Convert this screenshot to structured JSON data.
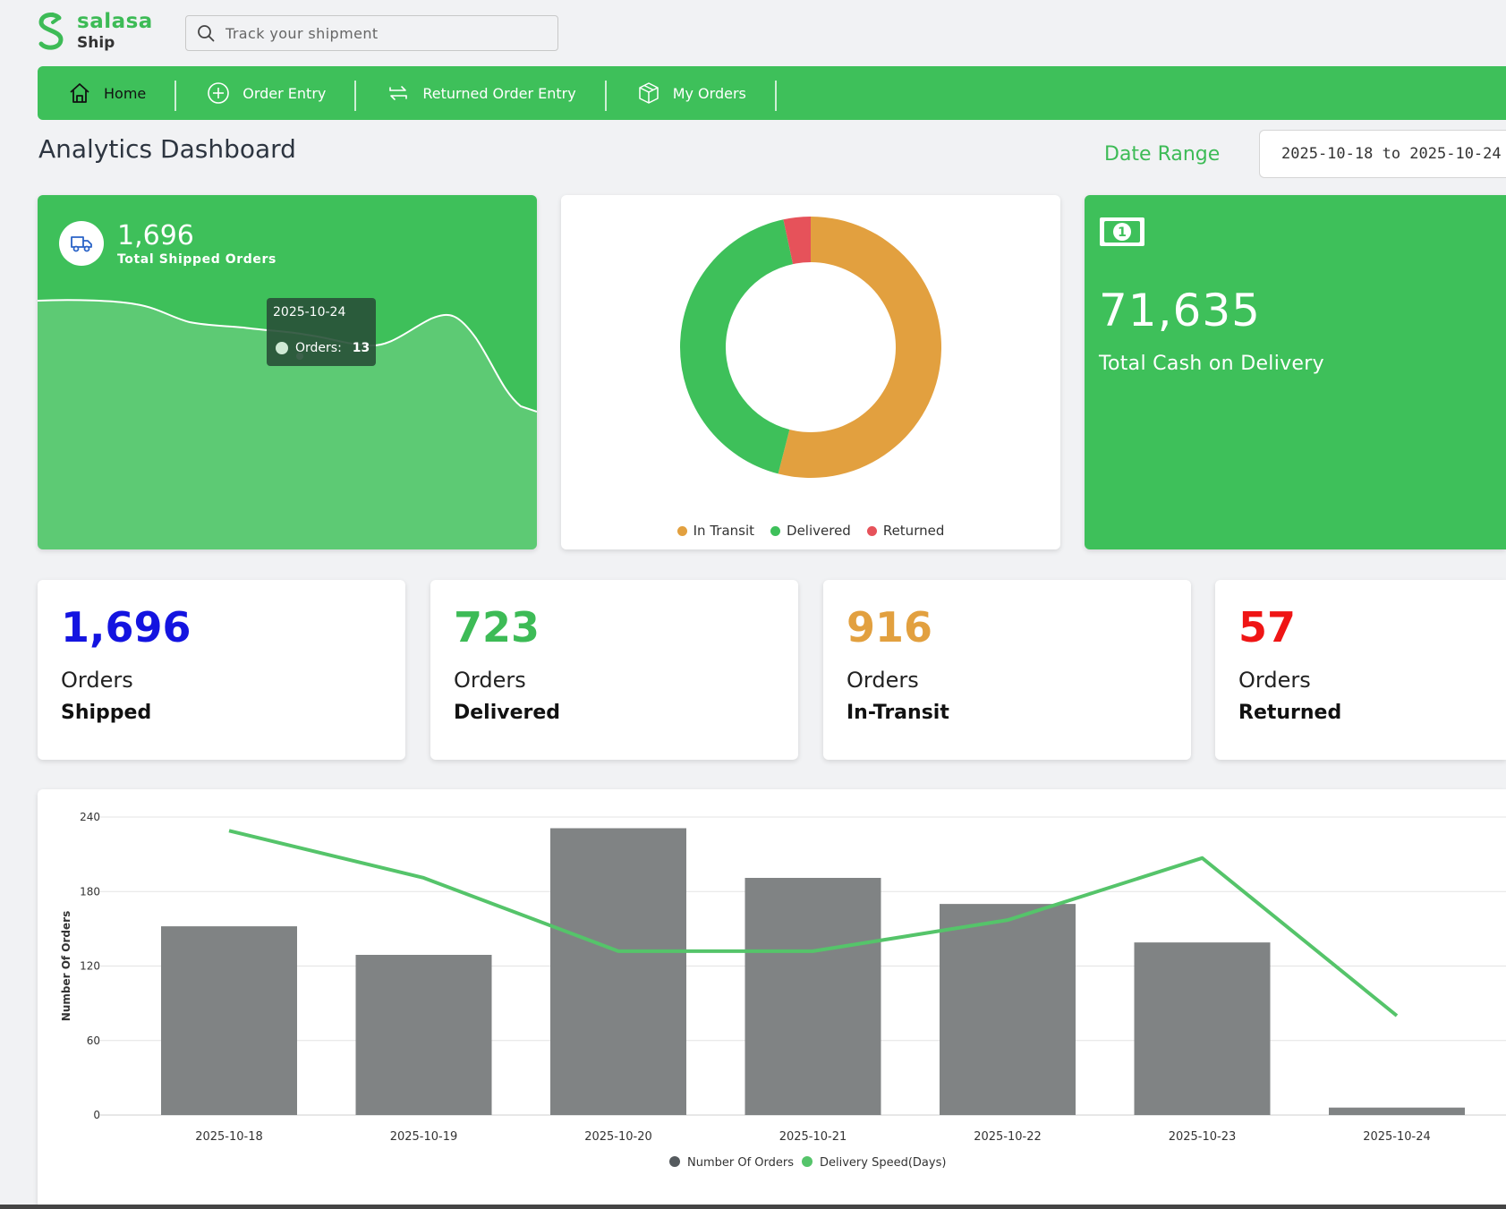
{
  "brand": {
    "name": "salasa",
    "sub": "Ship",
    "color": "#3dbb56"
  },
  "search": {
    "placeholder": "Track your shipment",
    "icon": "search-icon"
  },
  "nav": {
    "items": [
      {
        "label": "Home",
        "icon": "home-icon",
        "active": true
      },
      {
        "label": "Order Entry",
        "icon": "plus-circle-icon"
      },
      {
        "label": "Returned Order Entry",
        "icon": "arrows-swap-icon"
      },
      {
        "label": "My Orders",
        "icon": "box-icon"
      }
    ],
    "color": "#3ec05a"
  },
  "page": {
    "title": "Analytics Dashboard"
  },
  "date_range": {
    "label": "Date Range",
    "value": "2025-10-18 to 2025-10-24"
  },
  "shipped_card": {
    "value": "1,696",
    "label": "Total Shipped Orders",
    "icon": "truck-icon",
    "tooltip": {
      "date": "2025-10-24",
      "series": "Orders:",
      "value": "13"
    }
  },
  "cod_card": {
    "value": "71,635",
    "label": "Total Cash on Delivery",
    "icon": "cash-icon"
  },
  "stats": [
    {
      "value": "1,696",
      "line1": "Orders",
      "line2": "Shipped",
      "color": "#1414e0"
    },
    {
      "value": "723",
      "line1": "Orders",
      "line2": "Delivered",
      "color": "#3dbb56"
    },
    {
      "value": "916",
      "line1": "Orders",
      "line2": "In-Transit",
      "color": "#e2a03f"
    },
    {
      "value": "57",
      "line1": "Orders",
      "line2": "Returned",
      "color": "#ef1515"
    }
  ],
  "chart_data": [
    {
      "type": "pie",
      "donut": true,
      "categories": [
        "In Transit",
        "Delivered",
        "Returned"
      ],
      "values": [
        916,
        723,
        57
      ],
      "colors": [
        "#e2a03f",
        "#3ec05a",
        "#e6525a"
      ],
      "legend": "bottom"
    },
    {
      "type": "bar",
      "categories": [
        "2025-10-18",
        "2025-10-19",
        "2025-10-20",
        "2025-10-21",
        "2025-10-22",
        "2025-10-23",
        "2025-10-24"
      ],
      "series": [
        {
          "name": "Number Of Orders",
          "type": "bar",
          "values": [
            152,
            129,
            231,
            191,
            170,
            139,
            6
          ],
          "color": "#808384"
        },
        {
          "name": "Delivery Speed(Days)",
          "type": "line",
          "values": [
            229,
            191,
            132,
            132,
            157,
            207,
            80
          ],
          "color": "#55c46a"
        }
      ],
      "ylabel": "Number Of Orders",
      "ylim": [
        0,
        240
      ],
      "yticks": [
        "0",
        "60",
        "120",
        "180",
        "240"
      ],
      "grid": true,
      "legend": "bottom"
    }
  ]
}
